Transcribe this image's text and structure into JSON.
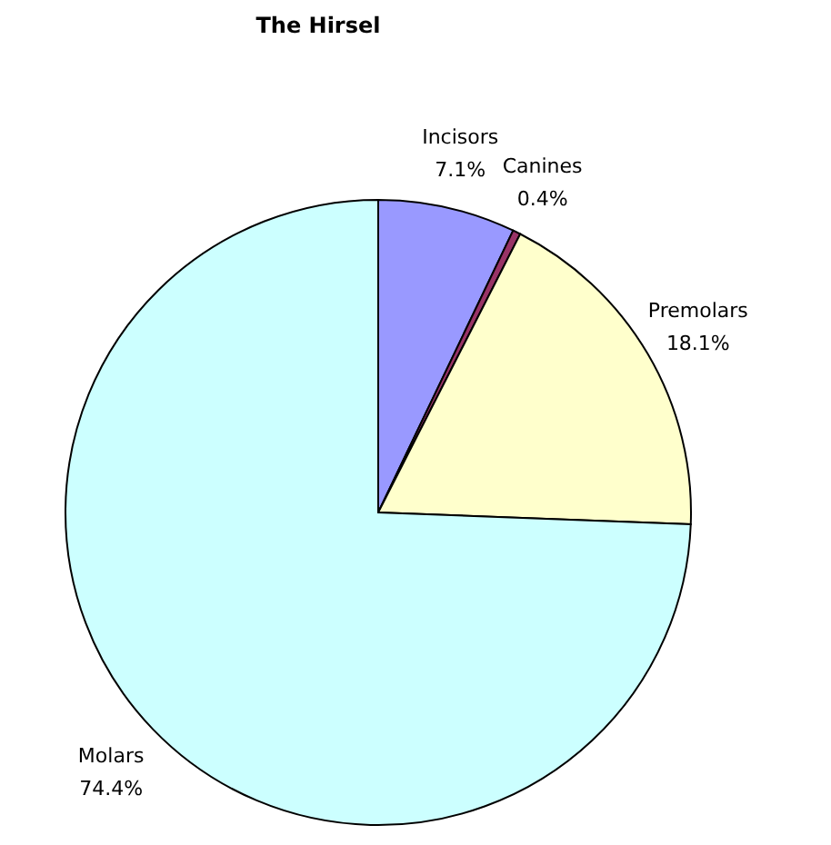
{
  "chart_data": {
    "type": "pie",
    "title": "The Hirsel",
    "categories": [
      "Incisors",
      "Canines",
      "Premolars",
      "Molars"
    ],
    "values": [
      7.1,
      0.4,
      18.1,
      74.4
    ],
    "colors": [
      "#9999ff",
      "#993366",
      "#ffffcc",
      "#ccffff"
    ],
    "value_labels": [
      "7.1%",
      "0.4%",
      "18.1%",
      "74.4%"
    ],
    "legend": false
  }
}
